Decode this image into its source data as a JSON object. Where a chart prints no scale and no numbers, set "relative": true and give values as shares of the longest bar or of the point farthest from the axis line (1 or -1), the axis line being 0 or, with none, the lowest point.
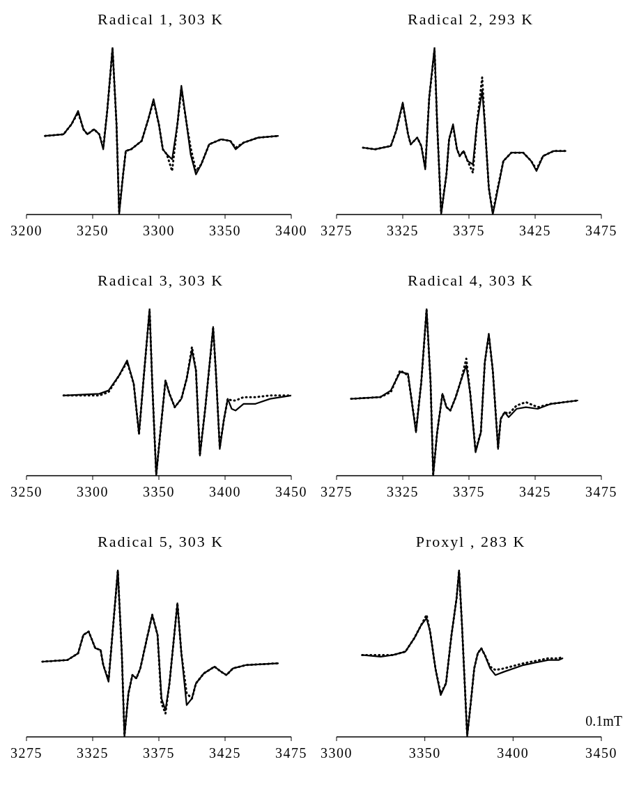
{
  "chart_data": [
    {
      "type": "line",
      "title": "Radical 1, 303 K",
      "relative": true,
      "marker": "none",
      "xlim": [
        3200,
        3400
      ],
      "xticks": [
        3200,
        3250,
        3300,
        3350,
        3400
      ],
      "tick_labels": "x",
      "x": [
        3214,
        3228,
        3234,
        3239,
        3243,
        3246,
        3251,
        3255,
        3258,
        3261,
        3265,
        3268,
        3270,
        3273,
        3275,
        3279,
        3287,
        3292,
        3296,
        3300,
        3303,
        3306,
        3310,
        3314,
        3317,
        3321,
        3324,
        3328,
        3332,
        3338,
        3347,
        3354,
        3358,
        3364,
        3375,
        3390
      ],
      "series": [
        {
          "color": "#000000",
          "line_style": "solid",
          "values": [
            0.47,
            0.48,
            0.54,
            0.62,
            0.51,
            0.48,
            0.51,
            0.48,
            0.39,
            0.62,
            1,
            0.54,
            0,
            0.24,
            0.38,
            0.39,
            0.44,
            0.57,
            0.69,
            0.54,
            0.39,
            0.36,
            0.33,
            0.54,
            0.77,
            0.54,
            0.36,
            0.24,
            0.3,
            0.42,
            0.45,
            0.44,
            0.39,
            0.43,
            0.46,
            0.47
          ]
        },
        {
          "color": "#000000",
          "line_style": "dotted",
          "values": [
            0.47,
            0.48,
            0.54,
            0.61,
            0.51,
            0.48,
            0.51,
            0.48,
            0.4,
            0.62,
            0.99,
            0.54,
            0.02,
            0.24,
            0.38,
            0.39,
            0.44,
            0.57,
            0.68,
            0.54,
            0.39,
            0.36,
            0.26,
            0.54,
            0.75,
            0.54,
            0.4,
            0.26,
            0.3,
            0.42,
            0.45,
            0.44,
            0.4,
            0.43,
            0.46,
            0.47
          ]
        }
      ]
    },
    {
      "type": "line",
      "title": "Radical 2, 293 K",
      "relative": true,
      "marker": "none",
      "xlim": [
        3275,
        3475
      ],
      "xticks": [
        3275,
        3325,
        3375,
        3425,
        3475
      ],
      "tick_labels": "x",
      "x": [
        3295,
        3304,
        3316,
        3320,
        3325,
        3329,
        3331,
        3336,
        3339,
        3342,
        3345,
        3349,
        3351,
        3354,
        3358,
        3360,
        3363,
        3366,
        3368,
        3371,
        3374,
        3378,
        3381,
        3385,
        3387,
        3390,
        3393,
        3396,
        3401,
        3407,
        3416,
        3422,
        3426,
        3431,
        3439,
        3448
      ],
      "series": [
        {
          "color": "#000000",
          "line_style": "solid",
          "values": [
            0.4,
            0.39,
            0.41,
            0.5,
            0.67,
            0.48,
            0.42,
            0.46,
            0.41,
            0.27,
            0.7,
            1,
            0.54,
            0,
            0.24,
            0.45,
            0.54,
            0.39,
            0.35,
            0.38,
            0.32,
            0.3,
            0.54,
            0.74,
            0.54,
            0.16,
            0,
            0.12,
            0.32,
            0.37,
            0.37,
            0.32,
            0.26,
            0.35,
            0.38,
            0.38
          ]
        },
        {
          "color": "#000000",
          "line_style": "dotted",
          "values": [
            0.4,
            0.39,
            0.41,
            0.5,
            0.66,
            0.48,
            0.42,
            0.46,
            0.41,
            0.28,
            0.7,
            0.98,
            0.54,
            0.01,
            0.24,
            0.45,
            0.53,
            0.39,
            0.35,
            0.38,
            0.32,
            0.25,
            0.54,
            0.82,
            0.54,
            0.16,
            0.01,
            0.13,
            0.32,
            0.37,
            0.37,
            0.32,
            0.27,
            0.35,
            0.38,
            0.38
          ]
        }
      ]
    },
    {
      "type": "line",
      "title": "Radical 3, 303 K",
      "relative": true,
      "marker": "none",
      "xlim": [
        3250,
        3450
      ],
      "xticks": [
        3250,
        3300,
        3350,
        3400,
        3450
      ],
      "tick_labels": "x",
      "x": [
        3278,
        3305,
        3312,
        3320,
        3326,
        3331,
        3335,
        3339,
        3343,
        3345,
        3348,
        3351,
        3355,
        3358,
        3362,
        3367,
        3371,
        3375,
        3378,
        3381,
        3385,
        3391,
        3393,
        3396,
        3399,
        3402,
        3405,
        3408,
        3414,
        3423,
        3434,
        3450
      ],
      "series": [
        {
          "color": "#000000",
          "line_style": "solid",
          "values": [
            0.48,
            0.49,
            0.51,
            0.6,
            0.69,
            0.55,
            0.25,
            0.63,
            1,
            0.55,
            0,
            0.25,
            0.57,
            0.49,
            0.41,
            0.46,
            0.58,
            0.75,
            0.63,
            0.12,
            0.4,
            0.89,
            0.63,
            0.16,
            0.33,
            0.46,
            0.4,
            0.39,
            0.43,
            0.43,
            0.46,
            0.48
          ]
        },
        {
          "color": "#000000",
          "line_style": "dotted",
          "values": [
            0.48,
            0.48,
            0.5,
            0.6,
            0.68,
            0.55,
            0.25,
            0.63,
            0.99,
            0.55,
            0.01,
            0.25,
            0.57,
            0.49,
            0.41,
            0.46,
            0.58,
            0.77,
            0.63,
            0.13,
            0.4,
            0.88,
            0.63,
            0.17,
            0.33,
            0.46,
            0.45,
            0.45,
            0.47,
            0.47,
            0.48,
            0.48
          ]
        }
      ]
    },
    {
      "type": "line",
      "title": "Radical 4, 303 K",
      "relative": true,
      "marker": "none",
      "xlim": [
        3275,
        3475
      ],
      "xticks": [
        3275,
        3325,
        3375,
        3425,
        3475
      ],
      "tick_labels": "x",
      "x": [
        3286,
        3308,
        3316,
        3323,
        3329,
        3331,
        3335,
        3339,
        3343,
        3346,
        3348,
        3351,
        3355,
        3358,
        3361,
        3365,
        3369,
        3373,
        3376,
        3380,
        3384,
        3387,
        3390,
        3393,
        3397,
        3399,
        3402,
        3405,
        3411,
        3418,
        3427,
        3437,
        3457
      ],
      "series": [
        {
          "color": "#000000",
          "line_style": "solid",
          "values": [
            0.46,
            0.47,
            0.51,
            0.62,
            0.61,
            0.49,
            0.26,
            0.56,
            1,
            0.56,
            0,
            0.26,
            0.49,
            0.41,
            0.39,
            0.47,
            0.57,
            0.66,
            0.49,
            0.14,
            0.26,
            0.68,
            0.85,
            0.63,
            0.16,
            0.34,
            0.38,
            0.35,
            0.4,
            0.41,
            0.4,
            0.43,
            0.45
          ]
        },
        {
          "color": "#000000",
          "line_style": "dotted",
          "values": [
            0.46,
            0.47,
            0.5,
            0.63,
            0.6,
            0.49,
            0.27,
            0.56,
            0.99,
            0.56,
            0.01,
            0.26,
            0.49,
            0.41,
            0.39,
            0.47,
            0.57,
            0.7,
            0.49,
            0.15,
            0.26,
            0.68,
            0.84,
            0.63,
            0.17,
            0.34,
            0.38,
            0.37,
            0.42,
            0.44,
            0.41,
            0.43,
            0.45
          ]
        }
      ]
    },
    {
      "type": "line",
      "title": "Radical 5, 303 K",
      "relative": true,
      "marker": "none",
      "xlim": [
        3275,
        3475
      ],
      "xticks": [
        3275,
        3325,
        3375,
        3425,
        3475
      ],
      "tick_labels": "x",
      "x": [
        3287,
        3306,
        3314,
        3318,
        3322,
        3327,
        3331,
        3333,
        3337,
        3340,
        3344,
        3347,
        3349,
        3352,
        3355,
        3358,
        3361,
        3366,
        3370,
        3374,
        3377,
        3380,
        3383,
        3389,
        3392,
        3396,
        3400,
        3403,
        3409,
        3417,
        3422,
        3426,
        3431,
        3441,
        3465
      ],
      "series": [
        {
          "color": "#000000",
          "line_style": "solid",
          "values": [
            0.45,
            0.46,
            0.5,
            0.61,
            0.63,
            0.53,
            0.52,
            0.43,
            0.33,
            0.62,
            1,
            0.5,
            0,
            0.26,
            0.37,
            0.35,
            0.41,
            0.59,
            0.73,
            0.61,
            0.23,
            0.16,
            0.32,
            0.8,
            0.5,
            0.19,
            0.23,
            0.32,
            0.38,
            0.42,
            0.39,
            0.37,
            0.41,
            0.43,
            0.44
          ]
        },
        {
          "color": "#000000",
          "line_style": "dotted",
          "values": [
            0.45,
            0.46,
            0.5,
            0.61,
            0.63,
            0.53,
            0.52,
            0.43,
            0.34,
            0.62,
            0.99,
            0.5,
            0.01,
            0.26,
            0.37,
            0.35,
            0.41,
            0.59,
            0.73,
            0.61,
            0.2,
            0.14,
            0.32,
            0.8,
            0.5,
            0.26,
            0.23,
            0.32,
            0.38,
            0.42,
            0.39,
            0.37,
            0.41,
            0.43,
            0.44
          ]
        }
      ]
    },
    {
      "type": "line",
      "title": "Proxyl , 283 K",
      "xlabel": "0.1mT",
      "relative": true,
      "marker": "none",
      "xlim": [
        3300,
        3450
      ],
      "xticks": [
        3300,
        3350,
        3400,
        3450
      ],
      "tick_labels": "x",
      "x": [
        3314.5,
        3325,
        3332,
        3339,
        3344,
        3348,
        3351,
        3353,
        3356,
        3359,
        3362,
        3365,
        3368,
        3369.4,
        3371,
        3374,
        3376,
        3378,
        3380,
        3382,
        3384,
        3387,
        3390,
        3395,
        3406,
        3420,
        3426,
        3428
      ],
      "series": [
        {
          "color": "#000000",
          "line_style": "solid",
          "values": [
            0.49,
            0.48,
            0.49,
            0.51,
            0.59,
            0.67,
            0.71,
            0.63,
            0.41,
            0.25,
            0.32,
            0.6,
            0.83,
            1,
            0.68,
            0,
            0.2,
            0.41,
            0.5,
            0.53,
            0.49,
            0.41,
            0.37,
            0.39,
            0.43,
            0.46,
            0.46,
            0.47
          ]
        },
        {
          "color": "#000000",
          "line_style": "dotted",
          "values": [
            0.49,
            0.49,
            0.49,
            0.51,
            0.59,
            0.67,
            0.73,
            0.63,
            0.41,
            0.26,
            0.32,
            0.6,
            0.83,
            0.99,
            0.68,
            0.01,
            0.2,
            0.41,
            0.5,
            0.53,
            0.49,
            0.42,
            0.4,
            0.41,
            0.44,
            0.47,
            0.47,
            0.48
          ]
        }
      ]
    }
  ]
}
